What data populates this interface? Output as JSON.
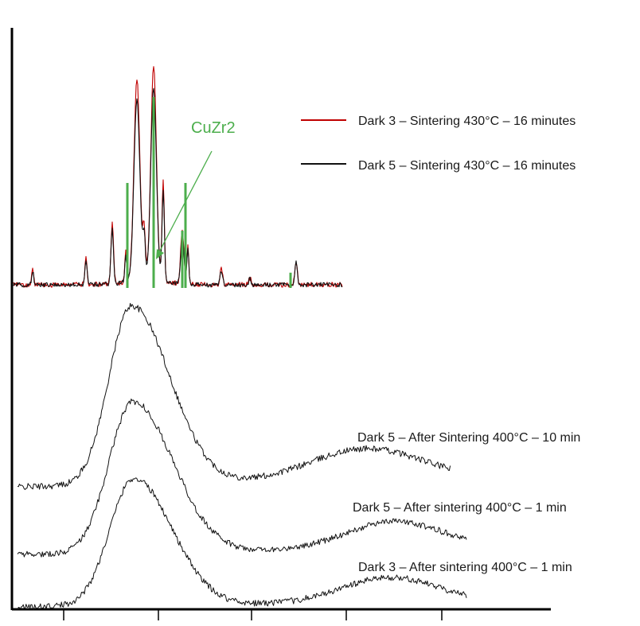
{
  "chart_data": {
    "type": "line",
    "title": "",
    "xlabel": "",
    "ylabel": "",
    "x_ticks": [
      "",
      "",
      "",
      "",
      ""
    ],
    "legend_placement": "top-right",
    "grid": false,
    "colors": {
      "red": "#c00000",
      "black": "#111111",
      "green": "#4cae4c"
    },
    "annotation": {
      "text": "CuZr2",
      "color": "#4cae4c"
    },
    "series": [
      {
        "name": "Dark 3 – Sintering 430°C – 16 minutes",
        "color": "#c00000",
        "kind": "crystalline"
      },
      {
        "name": "Dark 5 – Sintering 430°C – 16 minutes",
        "color": "#111111",
        "kind": "crystalline"
      },
      {
        "name": "Dark 5 – After Sintering 400°C – 10 min",
        "color": "#111111",
        "kind": "amorphous"
      },
      {
        "name": "Dark 5 – After sintering 400°C – 1 min",
        "color": "#111111",
        "kind": "amorphous"
      },
      {
        "name": "Dark 3 – After sintering 400°C – 1 min",
        "color": "#111111",
        "kind": "amorphous"
      }
    ],
    "reference_peaks": {
      "label": "CuZr2",
      "x": [
        0.27,
        0.33,
        0.41,
        0.48,
        0.88
      ],
      "heights": [
        0.55,
        1.0,
        0.3,
        0.55,
        0.08
      ]
    }
  }
}
